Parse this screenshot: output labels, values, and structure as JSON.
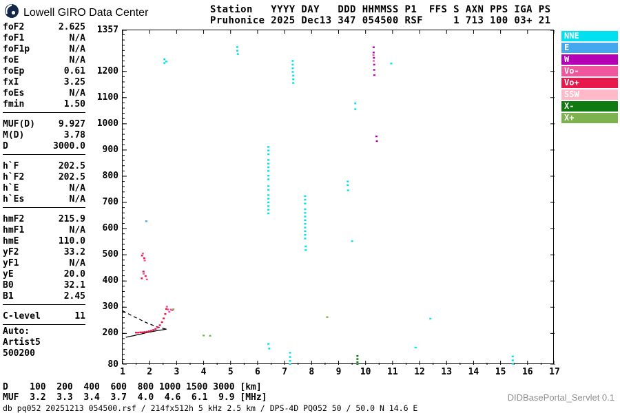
{
  "brand": {
    "title": "Lowell GIRO Data Center"
  },
  "header": {
    "line1": "Station   YYYY DAY   DDD HHMMSS P1  FFS S AXN PPS IGA PS",
    "line2": "Pruhonice 2025 Dec13 347 054500 RSF     1 713 100 03+ 21"
  },
  "params": {
    "groups": [
      {
        "rows": [
          [
            "foF2",
            "2.625"
          ],
          [
            "foF1",
            "N/A"
          ],
          [
            "foF1p",
            "N/A"
          ],
          [
            "foE",
            "N/A"
          ],
          [
            "foEp",
            "0.61"
          ],
          [
            "fxI",
            "3.25"
          ],
          [
            "foEs",
            "N/A"
          ],
          [
            "fmin",
            "1.50"
          ]
        ]
      },
      {
        "rows": [
          [
            "MUF(D)",
            "9.927"
          ],
          [
            "M(D)",
            "3.78"
          ],
          [
            "D",
            "3000.0"
          ]
        ]
      },
      {
        "rows": [
          [
            "h`F",
            "202.5"
          ],
          [
            "h`F2",
            "202.5"
          ],
          [
            "h`E",
            "N/A"
          ],
          [
            "h`Es",
            "N/A"
          ]
        ]
      },
      {
        "rows": [
          [
            "hmF2",
            "215.9"
          ],
          [
            "hmF1",
            "N/A"
          ],
          [
            "hmE",
            "110.0"
          ],
          [
            "yF2",
            "33.2"
          ],
          [
            "yF1",
            "N/A"
          ],
          [
            "yE",
            "20.0"
          ],
          [
            "B0",
            "32.1"
          ],
          [
            "B1",
            "2.45"
          ]
        ]
      },
      {
        "rows": [
          [
            "C-level",
            "11"
          ]
        ]
      }
    ],
    "auto": [
      "Auto:",
      "Artist5",
      "500200"
    ]
  },
  "legend": {
    "items": [
      {
        "label": "NNE",
        "color": "#00E0EE"
      },
      {
        "label": "E",
        "color": "#44A8F0"
      },
      {
        "label": "W",
        "color": "#B400B4"
      },
      {
        "label": "Vo-",
        "color": "#F0559D"
      },
      {
        "label": "Vo+",
        "color": "#E8184C"
      },
      {
        "label": "SSW",
        "color": "#FFB9C8"
      },
      {
        "label": "X-",
        "color": "#0F7A0F"
      },
      {
        "label": "X+",
        "color": "#7CB34F"
      }
    ]
  },
  "muf_table": {
    "rows": [
      {
        "label": "D",
        "values": [
          "100",
          "200",
          "400",
          "600",
          "800",
          "1000",
          "1500",
          "3000"
        ],
        "unit": "[km]"
      },
      {
        "label": "MUF",
        "values": [
          "3.2",
          "3.3",
          "3.4",
          "3.7",
          "4.0",
          "4.6",
          "6.1",
          "9.9"
        ],
        "unit": "[MHz]"
      }
    ]
  },
  "footer": {
    "info_line": "db pq052 20251213 054500.rsf / 214fx512h 5 kHz 2.5 km / DPS-4D PQ052 50 / 50.0 N 14.6 E",
    "servlet_label": "DIDBasePortal_Servlet 0.1"
  },
  "chart_data": {
    "type": "scatter",
    "xlabel": "[MHz]",
    "ylabel": "[km]",
    "x_range": [
      1,
      17
    ],
    "y_range": [
      80,
      1357
    ],
    "x_ticks": [
      1,
      2,
      3,
      4,
      5,
      6,
      7,
      8,
      9,
      10,
      11,
      12,
      13,
      14,
      15,
      16,
      17
    ],
    "y_ticks": [
      80,
      200,
      300,
      400,
      500,
      600,
      700,
      800,
      900,
      1000,
      1100,
      1200,
      1357
    ],
    "grid": false,
    "legend_position": "right",
    "series": [
      {
        "name": "NNE",
        "color": "#00E0EE",
        "points": [
          [
            2.55,
            1246
          ],
          [
            2.55,
            1232
          ],
          [
            2.62,
            1238
          ],
          [
            5.25,
            1293
          ],
          [
            5.25,
            1279
          ],
          [
            5.27,
            1266
          ],
          [
            7.3,
            1240
          ],
          [
            7.3,
            1226
          ],
          [
            7.3,
            1212
          ],
          [
            7.3,
            1198
          ],
          [
            7.32,
            1184
          ],
          [
            7.32,
            1170
          ],
          [
            7.32,
            1156
          ],
          [
            9.62,
            1078
          ],
          [
            9.62,
            1056
          ],
          [
            10.95,
            1230
          ],
          [
            6.4,
            912
          ],
          [
            6.4,
            898
          ],
          [
            6.4,
            884
          ],
          [
            6.4,
            862
          ],
          [
            6.4,
            848
          ],
          [
            6.4,
            834
          ],
          [
            6.4,
            820
          ],
          [
            6.4,
            802
          ],
          [
            6.4,
            788
          ],
          [
            6.4,
            762
          ],
          [
            6.4,
            748
          ],
          [
            6.4,
            728
          ],
          [
            6.4,
            714
          ],
          [
            6.4,
            700
          ],
          [
            6.4,
            686
          ],
          [
            6.4,
            672
          ],
          [
            6.4,
            658
          ],
          [
            7.76,
            724
          ],
          [
            7.76,
            710
          ],
          [
            7.76,
            696
          ],
          [
            7.76,
            674
          ],
          [
            7.76,
            660
          ],
          [
            7.76,
            646
          ],
          [
            7.76,
            632
          ],
          [
            7.76,
            618
          ],
          [
            7.76,
            604
          ],
          [
            7.76,
            590
          ],
          [
            7.76,
            576
          ],
          [
            7.76,
            562
          ],
          [
            7.78,
            532
          ],
          [
            7.78,
            518
          ],
          [
            9.34,
            780
          ],
          [
            9.34,
            766
          ],
          [
            9.35,
            746
          ],
          [
            9.5,
            552
          ],
          [
            6.4,
            160
          ],
          [
            6.43,
            142
          ],
          [
            7.2,
            126
          ],
          [
            7.2,
            110
          ],
          [
            7.2,
            95
          ],
          [
            7.2,
            82
          ],
          [
            11.85,
            146
          ],
          [
            12.4,
            256
          ],
          [
            15.45,
            112
          ],
          [
            15.45,
            97
          ],
          [
            15.46,
            84
          ]
        ]
      },
      {
        "name": "E",
        "color": "#44A8F0",
        "points": [
          [
            1.88,
            628
          ]
        ]
      },
      {
        "name": "W",
        "color": "#B400B4",
        "points": [
          [
            10.3,
            1292
          ],
          [
            10.3,
            1272
          ],
          [
            10.31,
            1252
          ],
          [
            10.32,
            1226
          ],
          [
            10.32,
            1206
          ],
          [
            10.33,
            1186
          ],
          [
            10.4,
            952
          ],
          [
            10.42,
            934
          ]
        ]
      },
      {
        "name": "Vo-",
        "color": "#F0559D",
        "points": [
          [
            10.29,
            1262
          ],
          [
            10.3,
            1240
          ],
          [
            2.64,
            302
          ],
          [
            2.68,
            291
          ],
          [
            2.73,
            282
          ],
          [
            2.79,
            291
          ],
          [
            2.84,
            288
          ],
          [
            1.75,
            505
          ],
          [
            1.82,
            478
          ],
          [
            1.78,
            428
          ],
          [
            1.9,
            406
          ]
        ]
      },
      {
        "name": "Vo+",
        "color": "#E8184C",
        "points": [
          [
            1.5,
            203
          ],
          [
            1.58,
            203
          ],
          [
            1.66,
            204
          ],
          [
            1.74,
            204
          ],
          [
            1.82,
            205
          ],
          [
            1.9,
            206
          ],
          [
            1.98,
            208
          ],
          [
            2.06,
            210
          ],
          [
            2.14,
            213
          ],
          [
            2.22,
            217
          ],
          [
            2.3,
            223
          ],
          [
            2.38,
            231
          ],
          [
            2.46,
            243
          ],
          [
            2.52,
            257
          ],
          [
            2.58,
            274
          ],
          [
            2.62,
            293
          ],
          [
            1.72,
            497
          ],
          [
            1.8,
            487
          ],
          [
            1.77,
            436
          ],
          [
            1.85,
            419
          ],
          [
            1.71,
            410
          ]
        ]
      },
      {
        "name": "X-",
        "color": "#0F7A0F",
        "points": [
          [
            9.7,
            114
          ],
          [
            9.7,
            102
          ],
          [
            9.7,
            90
          ],
          [
            9.7,
            82
          ]
        ]
      },
      {
        "name": "X+",
        "color": "#7CB34F",
        "points": [
          [
            4.0,
            192
          ],
          [
            4.24,
            191
          ],
          [
            8.58,
            262
          ],
          [
            2.88,
            292
          ]
        ]
      }
    ],
    "profile_dashed": [
      [
        1.0,
        286
      ],
      [
        1.15,
        278
      ],
      [
        1.3,
        270
      ],
      [
        1.45,
        262
      ],
      [
        1.6,
        255
      ],
      [
        1.75,
        247
      ],
      [
        1.9,
        240
      ],
      [
        2.05,
        234
      ],
      [
        2.2,
        228
      ],
      [
        2.35,
        223
      ],
      [
        2.5,
        219
      ],
      [
        2.625,
        216
      ]
    ],
    "profile_solid": [
      [
        1.12,
        185
      ],
      [
        1.25,
        188
      ],
      [
        1.4,
        191
      ],
      [
        1.55,
        195
      ],
      [
        1.7,
        198
      ],
      [
        1.85,
        202
      ],
      [
        2.0,
        205
      ],
      [
        2.15,
        208
      ],
      [
        2.3,
        211
      ],
      [
        2.45,
        213
      ],
      [
        2.55,
        215
      ],
      [
        2.625,
        216
      ]
    ]
  }
}
